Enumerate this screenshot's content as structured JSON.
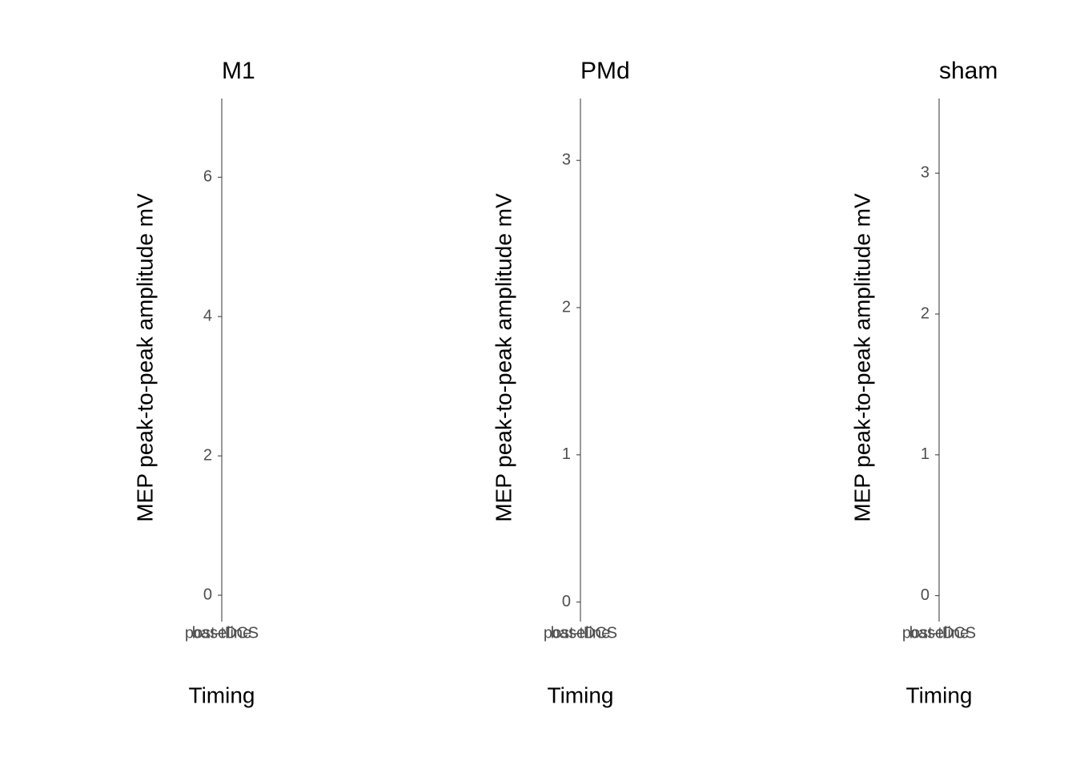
{
  "chart_data": [
    {
      "type": "bar",
      "title": "M1",
      "x_label": "Timing",
      "y_label": "MEP peak-to-peak amplitude mV",
      "categories": [
        "baseline",
        "post-tDCS"
      ],
      "ylim": [
        -0.31,
        7.13
      ],
      "yticks": [
        0,
        2,
        4,
        6
      ]
    },
    {
      "type": "bar",
      "title": "PMd",
      "x_label": "Timing",
      "y_label": "MEP peak-to-peak amplitude mV",
      "categories": [
        "baseline",
        "post-tDCS"
      ],
      "ylim": [
        -0.1,
        3.42
      ],
      "yticks": [
        0,
        1,
        2,
        3
      ]
    },
    {
      "type": "bar",
      "title": "sham",
      "x_label": "Timing",
      "y_label": "MEP peak-to-peak amplitude mV",
      "categories": [
        "baseline",
        "post-tDCS"
      ],
      "ylim": [
        -0.15,
        3.53
      ],
      "yticks": [
        0,
        1,
        2,
        3
      ]
    }
  ]
}
